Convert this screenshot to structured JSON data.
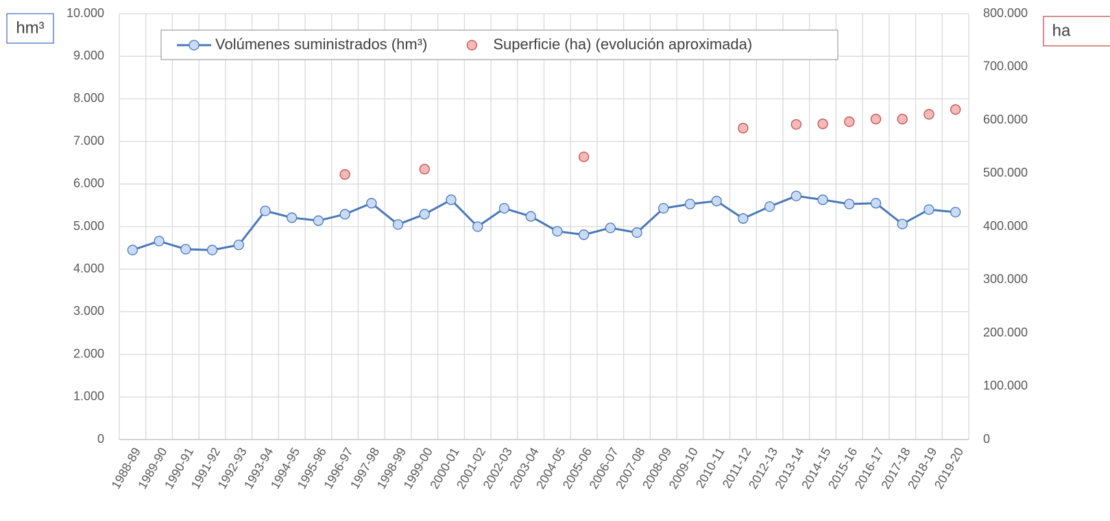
{
  "chart_data": {
    "type": "line",
    "ylabel": "hm³",
    "y2label": "ha",
    "categories": [
      "1988-89",
      "1989-90",
      "1990-91",
      "1991-92",
      "1992-93",
      "1993-94",
      "1994-95",
      "1995-96",
      "1996-97",
      "1997-98",
      "1998-99",
      "1999-00",
      "2000-01",
      "2001-02",
      "2002-03",
      "2003-04",
      "2004-05",
      "2005-06",
      "2006-07",
      "2007-08",
      "2008-09",
      "2009-10",
      "2010-11",
      "2011-12",
      "2012-13",
      "2013-14",
      "2014-15",
      "2015-16",
      "2016-17",
      "2017-18",
      "2018-19",
      "2019-20"
    ],
    "series": [
      {
        "name": "Volúmenes suministrados (hm³)",
        "type": "line",
        "color": "#4a78b8",
        "marker_fill": "#c9dbf7",
        "values": [
          4450,
          4660,
          4470,
          4450,
          4570,
          5370,
          5210,
          5140,
          5290,
          5550,
          5050,
          5290,
          5630,
          5000,
          5430,
          5240,
          4890,
          4810,
          4970,
          4860,
          5430,
          5530,
          5600,
          5190,
          5470,
          5720,
          5630,
          5530,
          5550,
          5060,
          5400,
          5340
        ]
      },
      {
        "name": "Superficie (ha) (evolución aproximada)",
        "type": "scatter",
        "axis": "y2",
        "color": "#c0504d",
        "marker_fill": "#f4b9b8",
        "values": [
          null,
          null,
          null,
          null,
          null,
          null,
          null,
          null,
          498000,
          null,
          null,
          508000,
          null,
          null,
          null,
          null,
          null,
          531000,
          null,
          null,
          null,
          null,
          null,
          585000,
          null,
          592000,
          593000,
          597000,
          602000,
          602000,
          611000,
          620000
        ]
      }
    ],
    "ylim": [
      0,
      10000
    ],
    "yticks": [
      0,
      {
        "value": 1000,
        "label": "1.000"
      },
      {
        "value": 2000,
        "label": "2.000"
      },
      {
        "value": 3000,
        "label": "3.000"
      },
      {
        "value": 4000,
        "label": "4.000"
      },
      {
        "value": 5000,
        "label": "5.000"
      },
      {
        "value": 6000,
        "label": "6.000"
      },
      {
        "value": 7000,
        "label": "7.000"
      },
      {
        "value": 8000,
        "label": "8.000"
      },
      {
        "value": 9000,
        "label": "9.000"
      },
      {
        "value": 10000,
        "label": "10.000"
      }
    ],
    "y2lim": [
      0,
      800000
    ],
    "y2ticks": [
      0,
      {
        "value": 100000,
        "label": "100.000"
      },
      {
        "value": 200000,
        "label": "200.000"
      },
      {
        "value": 300000,
        "label": "300.000"
      },
      {
        "value": 400000,
        "label": "400.000"
      },
      {
        "value": 500000,
        "label": "500.000"
      },
      {
        "value": 600000,
        "label": "600.000"
      },
      {
        "value": 700000,
        "label": "700.000"
      },
      {
        "value": 800000,
        "label": "800.000"
      }
    ],
    "grid": true,
    "legend": "top"
  }
}
